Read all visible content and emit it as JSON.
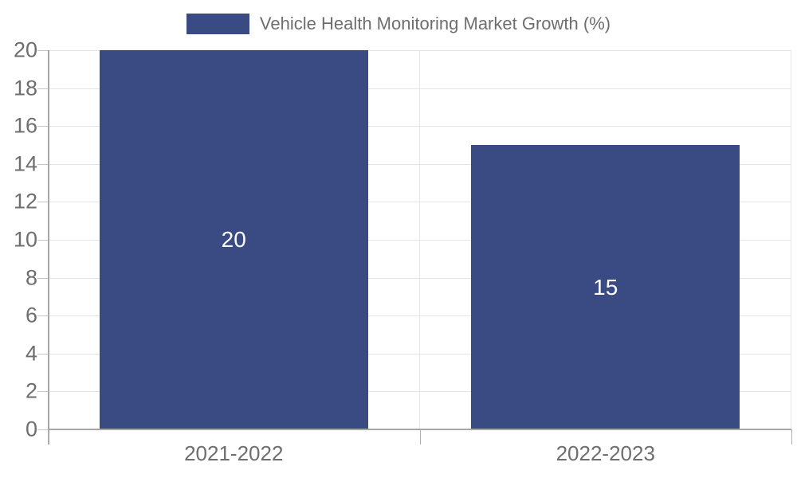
{
  "legend": {
    "label": "Vehicle Health Monitoring Market Growth (%)"
  },
  "chart_data": {
    "type": "bar",
    "title": "",
    "xlabel": "",
    "ylabel": "",
    "categories": [
      "2021-2022",
      "2022-2023"
    ],
    "values": [
      20,
      15
    ],
    "data_labels": [
      "20",
      "15"
    ],
    "series_name": "Vehicle Health Monitoring Market Growth (%)",
    "ylim": [
      0,
      20
    ],
    "yticks": [
      0,
      2,
      4,
      6,
      8,
      10,
      12,
      14,
      16,
      18,
      20
    ],
    "grid": true,
    "legend_position": "top-center",
    "bar_width_fraction": 0.722
  },
  "colors": {
    "bar": "#3A4B84",
    "grid": "#e5e5e5",
    "axis": "#a6a6a6",
    "y_tick": "#c6c6c6",
    "x_tick": "#b0b0b0",
    "tick_label": "#6e6e6e",
    "data_label": "#ffffff"
  }
}
